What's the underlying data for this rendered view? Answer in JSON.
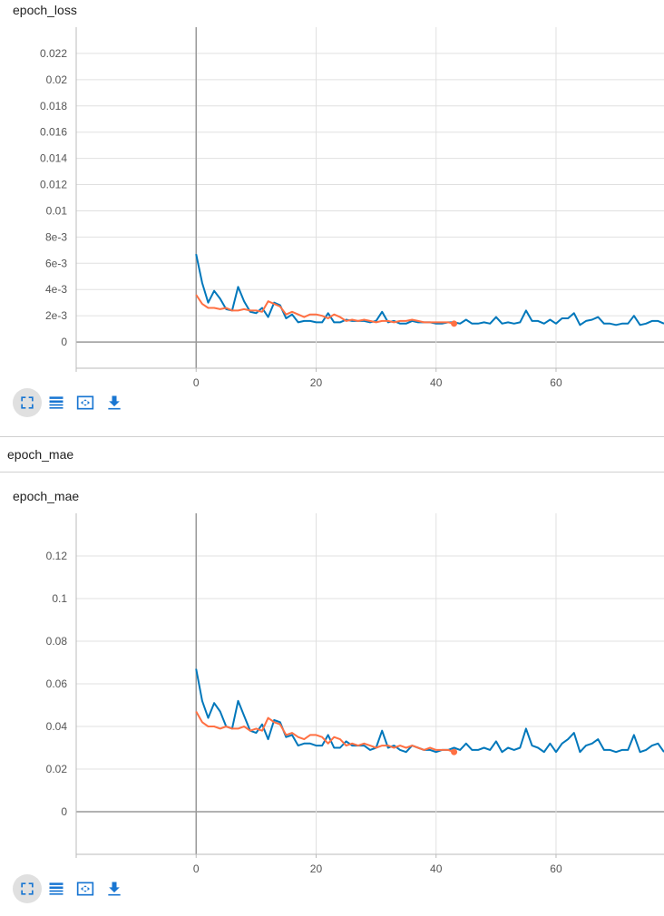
{
  "section": {
    "title": "epoch_mae"
  },
  "toolbar": {
    "buttons": [
      {
        "name": "fullscreen-button",
        "icon": "fullscreen-icon"
      },
      {
        "name": "log-scale-button",
        "icon": "list-icon"
      },
      {
        "name": "fit-domain-button",
        "icon": "fit-screen-icon"
      },
      {
        "name": "download-button",
        "icon": "download-icon"
      }
    ],
    "color": "#1976d2"
  },
  "chart_data": [
    {
      "type": "line",
      "title": "epoch_loss",
      "xlabel": "",
      "ylabel": "",
      "xlim": [
        -20,
        78
      ],
      "ylim": [
        -0.002,
        0.024
      ],
      "x_ticks": [
        0,
        20,
        40,
        60
      ],
      "x_tick_labels": [
        "0",
        "20",
        "40",
        "60"
      ],
      "y_ticks": [
        0,
        0.002,
        0.004,
        0.006,
        0.008,
        0.01,
        0.012,
        0.014,
        0.016,
        0.018,
        0.02,
        0.022
      ],
      "y_tick_labels": [
        "0",
        "2e-3",
        "4e-3",
        "6e-3",
        "8e-3",
        "0.01",
        "0.012",
        "0.014",
        "0.016",
        "0.018",
        "0.02",
        "0.022"
      ],
      "grid": true,
      "series": [
        {
          "color": "#0077bb",
          "x": [
            0,
            1,
            2,
            3,
            4,
            5,
            6,
            7,
            8,
            9,
            10,
            11,
            12,
            13,
            14,
            15,
            16,
            17,
            18,
            19,
            20,
            21,
            22,
            23,
            24,
            25,
            26,
            27,
            28,
            29,
            30,
            31,
            32,
            33,
            34,
            35,
            36,
            37,
            38,
            39,
            40,
            41,
            42,
            43,
            44,
            45,
            46,
            47,
            48,
            49,
            50,
            51,
            52,
            53,
            54,
            55,
            56,
            57,
            58,
            59,
            60,
            61,
            62,
            63,
            64,
            65,
            66,
            67,
            68,
            69,
            70,
            71,
            72,
            73,
            74,
            75,
            76,
            77,
            78
          ],
          "values": [
            0.0067,
            0.0045,
            0.003,
            0.0039,
            0.0033,
            0.0025,
            0.0024,
            0.0042,
            0.0031,
            0.0023,
            0.0022,
            0.0026,
            0.0019,
            0.003,
            0.0028,
            0.0018,
            0.0021,
            0.0015,
            0.0016,
            0.0016,
            0.0015,
            0.0015,
            0.0022,
            0.0015,
            0.0015,
            0.0017,
            0.0016,
            0.0016,
            0.0016,
            0.0015,
            0.0016,
            0.0023,
            0.0015,
            0.0016,
            0.0014,
            0.0014,
            0.0016,
            0.0015,
            0.0015,
            0.0015,
            0.0014,
            0.0014,
            0.0015,
            0.0015,
            0.0014,
            0.0017,
            0.0014,
            0.0014,
            0.0015,
            0.0014,
            0.0019,
            0.0014,
            0.0015,
            0.0014,
            0.0015,
            0.0024,
            0.0016,
            0.0016,
            0.0014,
            0.0017,
            0.0014,
            0.0018,
            0.0018,
            0.0022,
            0.0013,
            0.0016,
            0.0017,
            0.0019,
            0.0014,
            0.0014,
            0.0013,
            0.0014,
            0.0014,
            0.002,
            0.0013,
            0.0014,
            0.0016,
            0.0016,
            0.0014
          ]
        },
        {
          "color": "#ff7043",
          "x": [
            0,
            1,
            2,
            3,
            4,
            5,
            6,
            7,
            8,
            9,
            10,
            11,
            12,
            13,
            14,
            15,
            16,
            17,
            18,
            19,
            20,
            21,
            22,
            23,
            24,
            25,
            26,
            27,
            28,
            29,
            30,
            31,
            32,
            33,
            34,
            35,
            36,
            37,
            38,
            39,
            40,
            41,
            42,
            43
          ],
          "values": [
            0.0036,
            0.0029,
            0.0026,
            0.0026,
            0.0025,
            0.0026,
            0.0024,
            0.0024,
            0.0025,
            0.0024,
            0.0024,
            0.0023,
            0.0031,
            0.0029,
            0.0027,
            0.0021,
            0.0023,
            0.0021,
            0.0019,
            0.0021,
            0.0021,
            0.002,
            0.0018,
            0.0021,
            0.0019,
            0.0016,
            0.0017,
            0.0016,
            0.0017,
            0.0016,
            0.0015,
            0.0016,
            0.0016,
            0.0015,
            0.0016,
            0.0016,
            0.0017,
            0.0016,
            0.0015,
            0.0015,
            0.0015,
            0.0015,
            0.0015,
            0.0014
          ]
        }
      ]
    },
    {
      "type": "line",
      "title": "epoch_mae",
      "xlabel": "",
      "ylabel": "",
      "xlim": [
        -20,
        78
      ],
      "ylim": [
        -0.02,
        0.14
      ],
      "x_ticks": [
        0,
        20,
        40,
        60
      ],
      "x_tick_labels": [
        "0",
        "20",
        "40",
        "60"
      ],
      "y_ticks": [
        0,
        0.02,
        0.04,
        0.06,
        0.08,
        0.1,
        0.12
      ],
      "y_tick_labels": [
        "0",
        "0.02",
        "0.04",
        "0.06",
        "0.08",
        "0.1",
        "0.12"
      ],
      "grid": true,
      "series": [
        {
          "color": "#0077bb",
          "x": [
            0,
            1,
            2,
            3,
            4,
            5,
            6,
            7,
            8,
            9,
            10,
            11,
            12,
            13,
            14,
            15,
            16,
            17,
            18,
            19,
            20,
            21,
            22,
            23,
            24,
            25,
            26,
            27,
            28,
            29,
            30,
            31,
            32,
            33,
            34,
            35,
            36,
            37,
            38,
            39,
            40,
            41,
            42,
            43,
            44,
            45,
            46,
            47,
            48,
            49,
            50,
            51,
            52,
            53,
            54,
            55,
            56,
            57,
            58,
            59,
            60,
            61,
            62,
            63,
            64,
            65,
            66,
            67,
            68,
            69,
            70,
            71,
            72,
            73,
            74,
            75,
            76,
            77,
            78
          ],
          "values": [
            0.067,
            0.052,
            0.044,
            0.051,
            0.047,
            0.04,
            0.039,
            0.052,
            0.045,
            0.038,
            0.037,
            0.041,
            0.034,
            0.043,
            0.042,
            0.035,
            0.036,
            0.031,
            0.032,
            0.032,
            0.031,
            0.031,
            0.036,
            0.03,
            0.03,
            0.033,
            0.031,
            0.031,
            0.031,
            0.029,
            0.03,
            0.038,
            0.03,
            0.031,
            0.029,
            0.028,
            0.031,
            0.03,
            0.029,
            0.029,
            0.028,
            0.029,
            0.029,
            0.03,
            0.029,
            0.032,
            0.029,
            0.029,
            0.03,
            0.029,
            0.033,
            0.028,
            0.03,
            0.029,
            0.03,
            0.039,
            0.031,
            0.03,
            0.028,
            0.032,
            0.028,
            0.032,
            0.034,
            0.037,
            0.028,
            0.031,
            0.032,
            0.034,
            0.029,
            0.029,
            0.028,
            0.029,
            0.029,
            0.036,
            0.028,
            0.029,
            0.031,
            0.032,
            0.028
          ]
        },
        {
          "color": "#ff7043",
          "x": [
            0,
            1,
            2,
            3,
            4,
            5,
            6,
            7,
            8,
            9,
            10,
            11,
            12,
            13,
            14,
            15,
            16,
            17,
            18,
            19,
            20,
            21,
            22,
            23,
            24,
            25,
            26,
            27,
            28,
            29,
            30,
            31,
            32,
            33,
            34,
            35,
            36,
            37,
            38,
            39,
            40,
            41,
            42,
            43
          ],
          "values": [
            0.047,
            0.042,
            0.04,
            0.04,
            0.039,
            0.04,
            0.039,
            0.039,
            0.04,
            0.038,
            0.039,
            0.038,
            0.044,
            0.042,
            0.041,
            0.036,
            0.037,
            0.035,
            0.034,
            0.036,
            0.036,
            0.035,
            0.032,
            0.035,
            0.034,
            0.031,
            0.032,
            0.031,
            0.032,
            0.031,
            0.03,
            0.031,
            0.031,
            0.03,
            0.031,
            0.03,
            0.031,
            0.03,
            0.029,
            0.03,
            0.029,
            0.029,
            0.029,
            0.028
          ]
        }
      ]
    }
  ]
}
